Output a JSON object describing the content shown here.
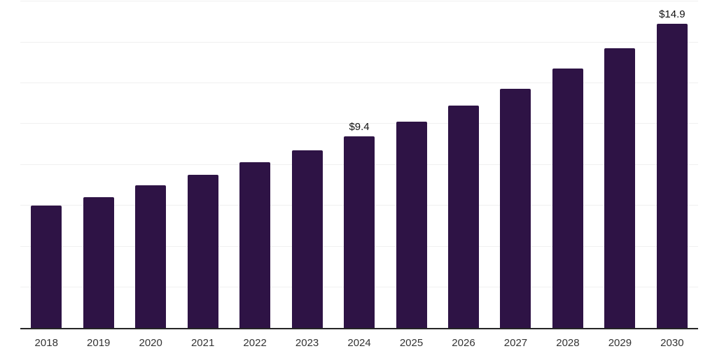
{
  "chart_data": {
    "type": "bar",
    "title": "",
    "xlabel": "",
    "ylabel": "",
    "categories": [
      "2018",
      "2019",
      "2020",
      "2021",
      "2022",
      "2023",
      "2024",
      "2025",
      "2026",
      "2027",
      "2028",
      "2029",
      "2030"
    ],
    "values": [
      6.0,
      6.4,
      7.0,
      7.5,
      8.1,
      8.7,
      9.4,
      10.1,
      10.9,
      11.7,
      12.7,
      13.7,
      14.9
    ],
    "value_labels": [
      "",
      "",
      "",
      "",
      "",
      "",
      "$9.4",
      "",
      "",
      "",
      "",
      "",
      "$14.9"
    ],
    "ylim": [
      0,
      16.06
    ],
    "gridline_values": [
      2,
      4,
      6,
      8,
      10,
      12,
      14,
      16
    ],
    "grid": true,
    "legend_position": "none",
    "colors": {
      "bar": "#2e1345",
      "gridline": "#f0f0f0",
      "axis_line": "#262626",
      "tick_label": "#333333",
      "value_label": "#111111",
      "background": "#ffffff"
    }
  }
}
